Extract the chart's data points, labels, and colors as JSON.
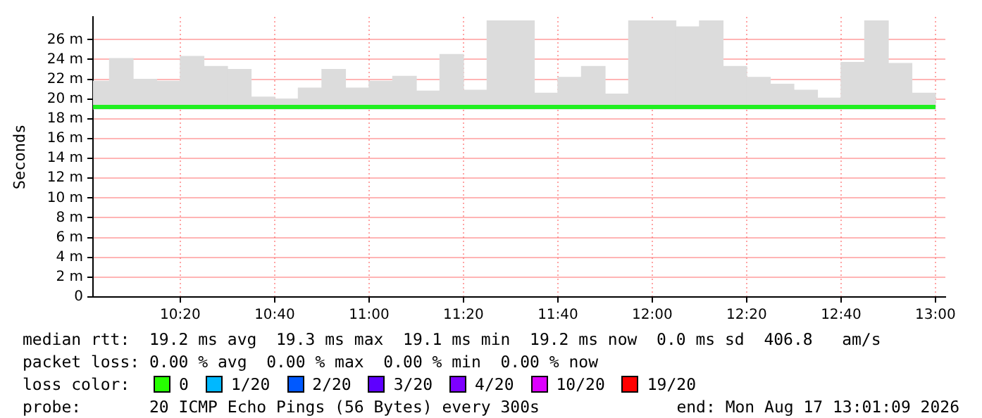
{
  "chart_data": {
    "type": "bar",
    "ylabel": "Seconds",
    "x": [
      10.0417,
      10.125,
      10.2083,
      10.2917,
      10.375,
      10.4583,
      10.5417,
      10.625,
      10.7083,
      10.7917,
      10.875,
      10.9583,
      11.0417,
      11.125,
      11.2083,
      11.2917,
      11.375,
      11.4583,
      11.5417,
      11.625,
      11.7083,
      11.7917,
      11.875,
      11.9583,
      12.0417,
      12.125,
      12.2083,
      12.2917,
      12.375,
      12.4583,
      12.5417,
      12.625,
      12.7083,
      12.7917,
      12.875,
      12.9583
    ],
    "series": [
      {
        "color": "#dcdcdc",
        "base": [
          19,
          19,
          19,
          19,
          19,
          19,
          19,
          19,
          19,
          19,
          19,
          19,
          19,
          19,
          19,
          19,
          19,
          19,
          19,
          19,
          19,
          19,
          19,
          19,
          19,
          19,
          19,
          19,
          19,
          19,
          19,
          19,
          19,
          19,
          19,
          19
        ],
        "values": [
          2.8,
          5.1,
          3.0,
          2.8,
          5.3,
          4.3,
          4.0,
          1.2,
          1.0,
          2.1,
          4.0,
          2.1,
          2.8,
          3.3,
          1.8,
          5.5,
          1.9,
          8.9,
          8.9,
          1.6,
          3.2,
          4.3,
          1.5,
          8.9,
          8.9,
          8.3,
          8.9,
          4.3,
          3.2,
          2.5,
          1.9,
          1.1,
          4.7,
          8.9,
          4.6,
          1.6
        ]
      },
      {
        "type": "line",
        "color": "#20f020",
        "x": [
          10.025,
          13.0
        ],
        "values": [
          19.2,
          19.2
        ]
      }
    ],
    "xlim": [
      10.025,
      13.035
    ],
    "xticks": [
      {
        "value": 10.3333,
        "label": "10:20"
      },
      {
        "value": 10.6667,
        "label": "10:40"
      },
      {
        "value": 11,
        "label": "11:00"
      },
      {
        "value": 11.3333,
        "label": "11:20"
      },
      {
        "value": 11.6667,
        "label": "11:40"
      },
      {
        "value": 12,
        "label": "12:00"
      },
      {
        "value": 12.3333,
        "label": "12:20"
      },
      {
        "value": 12.6667,
        "label": "12:40"
      },
      {
        "value": 13,
        "label": "13:00"
      }
    ],
    "ylim": [
      0,
      28.3
    ],
    "yticks": [
      {
        "value": 0,
        "label": "0"
      },
      {
        "value": 2,
        "label": "2 m"
      },
      {
        "value": 4,
        "label": "4 m"
      },
      {
        "value": 6,
        "label": "6 m"
      },
      {
        "value": 8,
        "label": "8 m"
      },
      {
        "value": 10,
        "label": "10 m"
      },
      {
        "value": 12,
        "label": "12 m"
      },
      {
        "value": 14,
        "label": "14 m"
      },
      {
        "value": 16,
        "label": "16 m"
      },
      {
        "value": 18,
        "label": "18 m"
      },
      {
        "value": 20,
        "label": "20 m"
      },
      {
        "value": 22,
        "label": "22 m"
      },
      {
        "value": 24,
        "label": "24 m"
      },
      {
        "value": 26,
        "label": "26 m"
      }
    ],
    "grid": true,
    "legend": false,
    "annotations": [
      "median rtt:  19.2 ms avg  19.3 ms max  19.1 ms min  19.2 ms now  0.0 ms sd  406.8   am/s",
      "packet loss: 0.00 % avg  0.00 % max  0.00 % min  0.00 % now",
      "loss color:",
      "0",
      "1/20",
      "2/20",
      "3/20",
      "4/20",
      "10/20",
      "19/20",
      "probe:       20 ICMP Echo Pings (56 Bytes) every 300s",
      "end: Mon Aug 17 13:01:09 2026"
    ]
  }
}
